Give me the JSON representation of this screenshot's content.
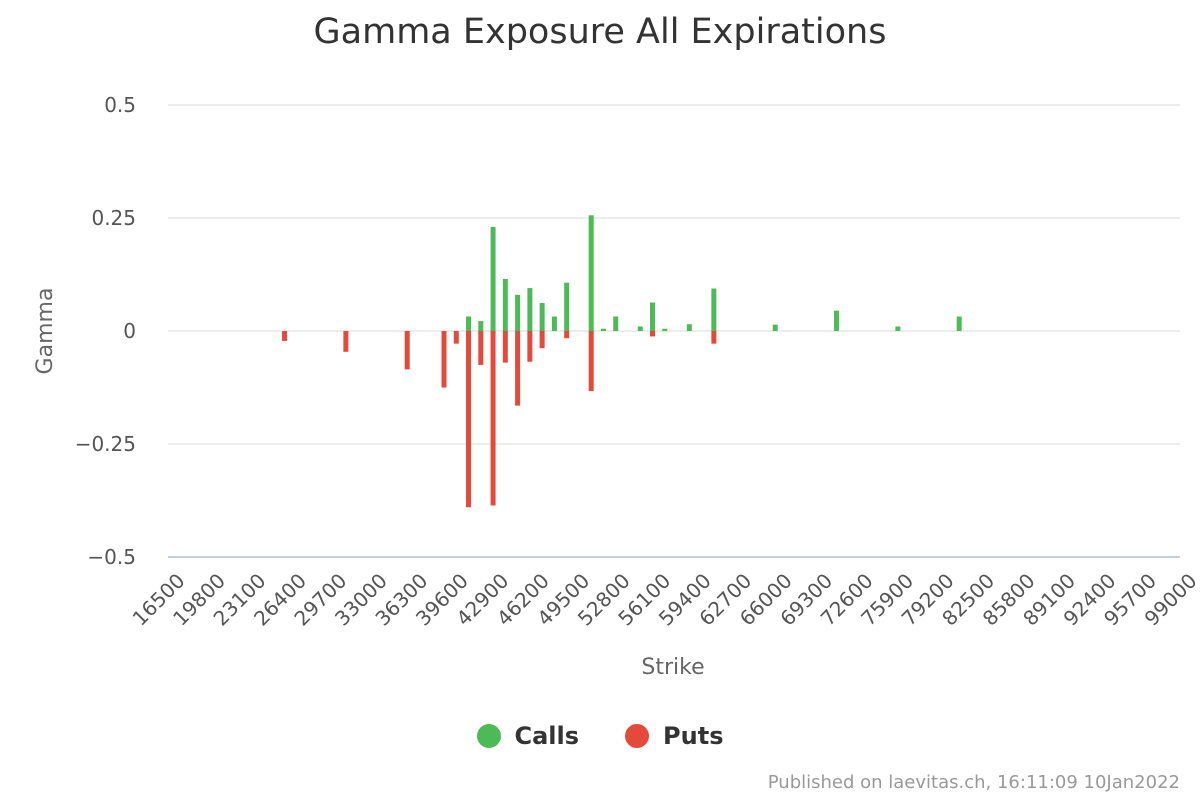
{
  "chart_data": {
    "type": "bar",
    "title": "Gamma Exposure All Expirations",
    "xlabel": "Strike",
    "ylabel": "Gamma",
    "ylim": [
      -0.5,
      0.5
    ],
    "yticks": [
      0.5,
      0.25,
      0,
      -0.25,
      -0.5
    ],
    "ytick_labels": [
      "0.5",
      "0.25",
      "0",
      "−0.25",
      "−0.5"
    ],
    "xlim": [
      16500,
      99000
    ],
    "xticks": [
      16500,
      19800,
      23100,
      26400,
      29700,
      33000,
      36300,
      39600,
      42900,
      46200,
      49500,
      52800,
      56100,
      59400,
      62700,
      66000,
      69300,
      72600,
      75900,
      79200,
      82500,
      85800,
      89100,
      92400,
      95700,
      99000
    ],
    "grid": true,
    "legend_position": "bottom-center",
    "series": [
      {
        "name": "Calls",
        "color": "#4cbb55",
        "points": [
          [
            41000,
            0.032
          ],
          [
            42000,
            0.022
          ],
          [
            43000,
            0.23
          ],
          [
            44000,
            0.115
          ],
          [
            45000,
            0.08
          ],
          [
            46000,
            0.095
          ],
          [
            47000,
            0.062
          ],
          [
            48000,
            0.032
          ],
          [
            49000,
            0.107
          ],
          [
            51000,
            0.256
          ],
          [
            52000,
            0.005
          ],
          [
            53000,
            0.032
          ],
          [
            55000,
            0.01
          ],
          [
            56000,
            0.063
          ],
          [
            57000,
            0.005
          ],
          [
            59000,
            0.015
          ],
          [
            61000,
            0.094
          ],
          [
            66000,
            0.014
          ],
          [
            71000,
            0.045
          ],
          [
            76000,
            0.01
          ],
          [
            81000,
            0.032
          ]
        ]
      },
      {
        "name": "Puts",
        "color": "#e4493b",
        "points": [
          [
            26000,
            -0.022
          ],
          [
            31000,
            -0.046
          ],
          [
            36000,
            -0.085
          ],
          [
            39000,
            -0.125
          ],
          [
            40000,
            -0.028
          ],
          [
            41000,
            -0.39
          ],
          [
            42000,
            -0.075
          ],
          [
            43000,
            -0.386
          ],
          [
            44000,
            -0.07
          ],
          [
            45000,
            -0.165
          ],
          [
            46000,
            -0.068
          ],
          [
            47000,
            -0.038
          ],
          [
            49000,
            -0.016
          ],
          [
            51000,
            -0.133
          ],
          [
            56000,
            -0.012
          ],
          [
            61000,
            -0.028
          ]
        ]
      }
    ]
  },
  "credits": {
    "text": "Published on laevitas.ch, 16:11:09 10Jan2022"
  }
}
